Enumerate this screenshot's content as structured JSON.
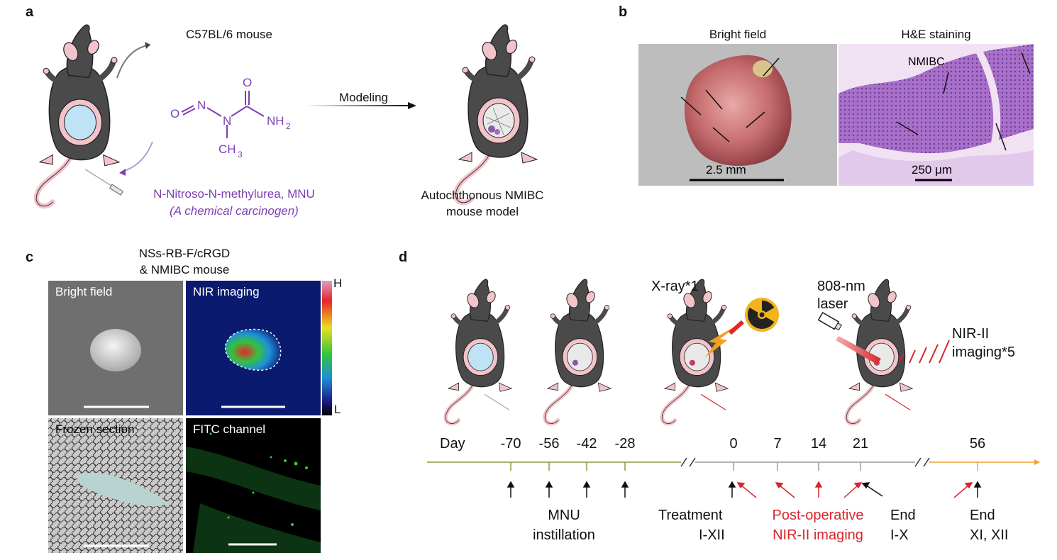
{
  "panels": {
    "a": "a",
    "b": "b",
    "c": "c",
    "d": "d"
  },
  "panel_a": {
    "mouse_strain": "C57BL/6 mouse",
    "chem": {
      "o_eq": "O",
      "n1": "N",
      "n2": "N",
      "o_top": "O",
      "nh2": "NH",
      "nh2_sub": "2",
      "ch3": "CH",
      "ch3_sub": "3"
    },
    "modeling": "Modeling",
    "compound_name": "N-Nitroso-N-methylurea, MNU",
    "compound_desc": "(A chemical carcinogen)",
    "model_line1": "Autochthonous NMIBC",
    "model_line2": "mouse model"
  },
  "panel_b": {
    "bright_field_title": "Bright field",
    "he_title": "H&E staining",
    "bf_scale": "2.5 mm",
    "he_scale": "250 μm",
    "he_label": "NMIBC"
  },
  "panel_c": {
    "title_line1": "NSs-RB-F/cRGD",
    "title_line2": "& NMIBC mouse",
    "img_bright": "Bright field",
    "img_nir": "NIR imaging",
    "img_frozen": "Frozen section",
    "img_fitc": "FITC channel",
    "scale_high": "H",
    "scale_low": "L",
    "colors": {
      "bg_dark": "#0a1a6e",
      "hot": "#e8242b",
      "mid": "#31c43d",
      "fitc": "#2ecc40"
    }
  },
  "panel_d": {
    "xray": "X-ray*1",
    "laser_line1": "808-nm",
    "laser_line2": "laser",
    "nir_line1": "NIR-II",
    "nir_line2": "imaging*5",
    "day_label": "Day",
    "days": [
      "-70",
      "-56",
      "-42",
      "-28",
      "0",
      "7",
      "14",
      "21",
      "56"
    ],
    "mnu_line1": "MNU",
    "mnu_line2": "instillation",
    "treatment_line1": "Treatment",
    "treatment_line2": "I-XII",
    "post_line1": "Post-operative",
    "post_line2": "NIR-II imaging",
    "end1_line1": "End",
    "end1_line2": "I-X",
    "end2_line1": "End",
    "end2_line2": "XI, XII",
    "colors": {
      "seg1": "#8a9a3a",
      "seg2": "#9a9a9a",
      "seg3": "#f0a030",
      "red": "#d8262b",
      "purple": "#7d3fb3"
    }
  }
}
